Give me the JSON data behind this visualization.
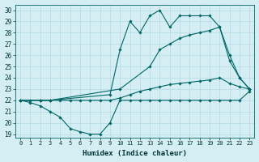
{
  "title": "",
  "xlabel": "Humidex (Indice chaleur)",
  "ylabel": "",
  "bg_color": "#d4eef4",
  "grid_color": "#b8dde8",
  "line_color": "#006666",
  "x_ticks": [
    0,
    1,
    2,
    3,
    4,
    5,
    6,
    7,
    8,
    9,
    10,
    11,
    12,
    13,
    14,
    15,
    16,
    17,
    18,
    19,
    20,
    21,
    22,
    23
  ],
  "y_ticks": [
    19,
    20,
    21,
    22,
    23,
    24,
    25,
    26,
    27,
    28,
    29,
    30
  ],
  "ylim": [
    18.7,
    30.5
  ],
  "xlim": [
    -0.5,
    23.5
  ],
  "series": [
    {
      "x": [
        0,
        1,
        2,
        3,
        4,
        5,
        6,
        7,
        8,
        9,
        10,
        11,
        12,
        13,
        14,
        15,
        16,
        17,
        18,
        19,
        20,
        21,
        22,
        23
      ],
      "y": [
        22,
        21.8,
        21.5,
        21,
        20.5,
        19.5,
        19.2,
        19,
        19,
        20,
        22,
        22,
        22,
        22,
        22,
        22,
        22,
        22,
        22,
        22,
        22,
        22,
        22,
        22.8
      ]
    },
    {
      "x": [
        0,
        1,
        2,
        3,
        4,
        5,
        6,
        7,
        8,
        9,
        10,
        11,
        12,
        13,
        14,
        15,
        16,
        17,
        18,
        19,
        20,
        21,
        22,
        23
      ],
      "y": [
        22,
        22,
        22,
        22,
        22,
        22,
        22,
        22,
        22,
        22,
        22.2,
        22.5,
        22.8,
        23,
        23.2,
        23.4,
        23.5,
        23.6,
        23.7,
        23.8,
        24,
        23.5,
        23.2,
        23
      ]
    },
    {
      "x": [
        0,
        2,
        3,
        10,
        13,
        14,
        15,
        16,
        17,
        18,
        19,
        20,
        21,
        22,
        23
      ],
      "y": [
        22,
        22,
        22,
        23,
        25,
        26.5,
        27,
        27.5,
        27.8,
        28,
        28.2,
        28.5,
        25.5,
        24,
        23
      ]
    },
    {
      "x": [
        0,
        1,
        2,
        3,
        9,
        10,
        11,
        12,
        13,
        14,
        15,
        16,
        17,
        18,
        19,
        20,
        21,
        22,
        23
      ],
      "y": [
        22,
        22,
        22,
        22,
        22.5,
        26.5,
        29,
        28,
        29.5,
        30,
        28.5,
        29.5,
        29.5,
        29.5,
        29.5,
        28.5,
        26,
        24,
        23
      ]
    }
  ]
}
